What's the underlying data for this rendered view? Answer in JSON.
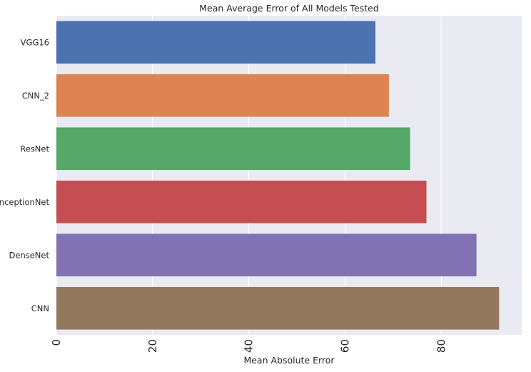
{
  "chart_data": {
    "type": "bar",
    "orientation": "horizontal",
    "title": "Mean Average Error of All Models Tested",
    "xlabel": "Mean Absolute Error",
    "ylabel": "",
    "categories": [
      "VGG16",
      "CNN_2",
      "ResNet",
      "InceptionNet",
      "DenseNet",
      "CNN"
    ],
    "values": [
      66.3,
      69.1,
      73.5,
      76.9,
      87.3,
      92.0
    ],
    "colors": [
      "#4c72b0",
      "#dd8452",
      "#55a868",
      "#c44e52",
      "#8172b3",
      "#937860"
    ],
    "xlim": [
      0,
      96.7
    ],
    "xticks": [
      0,
      20,
      40,
      60,
      80
    ],
    "xtick_rotation": "vertical",
    "grid": true,
    "background": "#eaeaf2",
    "legend": "none"
  }
}
